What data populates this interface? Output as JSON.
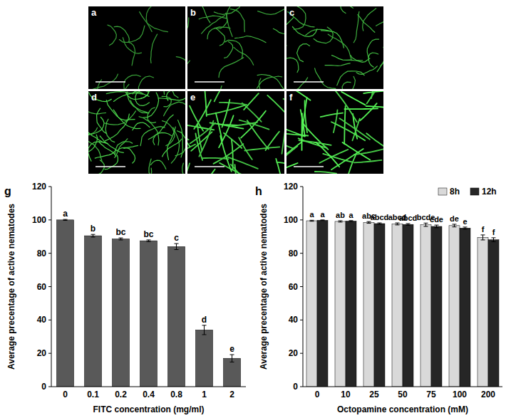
{
  "images": {
    "labels": [
      "a",
      "b",
      "c",
      "d",
      "e",
      "f"
    ]
  },
  "chart_data": [
    {
      "type": "bar",
      "title": "g",
      "x_label": "FITC concentration (mg/ml)",
      "y_label": "Average precentage of active nematodes",
      "categories": [
        "0",
        "0.1",
        "0.2",
        "0.4",
        "0.8",
        "1",
        "2"
      ],
      "values": [
        100,
        90.5,
        88.6,
        87.5,
        84,
        34,
        17
      ],
      "errors": [
        0.3,
        0.8,
        0.6,
        0.5,
        1.8,
        2.8,
        2.2
      ],
      "letters": [
        "a",
        "b",
        "bc",
        "bc",
        "c",
        "d",
        "e"
      ],
      "color": "#595959",
      "ylim": [
        0,
        120
      ],
      "yticks": [
        0,
        20,
        40,
        60,
        80,
        100,
        120
      ],
      "grid": false
    },
    {
      "type": "bar",
      "title": "h",
      "x_label": "Octopamine concentration (mM)",
      "y_label": "Average precentage of active nematodes",
      "categories": [
        "0",
        "10",
        "25",
        "50",
        "75",
        "100",
        "200"
      ],
      "series": [
        {
          "name": "8h",
          "color": "#d9d9d9",
          "values": [
            99.5,
            99.1,
            98.5,
            97.6,
            97.1,
            96.6,
            89.5
          ],
          "errors": [
            0.3,
            0.4,
            0.5,
            0.6,
            1.0,
            0.8,
            1.5
          ],
          "letters": [
            "a",
            "ab",
            "abc",
            "abcd",
            "bcde",
            "de",
            "f"
          ]
        },
        {
          "name": "12h",
          "color": "#262626",
          "values": [
            99.8,
            99.3,
            97.8,
            97.3,
            96.1,
            95.1,
            88.1
          ],
          "errors": [
            0.2,
            0.3,
            0.4,
            0.5,
            0.8,
            0.6,
            1.2
          ],
          "letters": [
            "a",
            "a",
            "abcd",
            "abcd",
            "cde",
            "e",
            "f"
          ]
        }
      ],
      "legend": "top-right",
      "ylim": [
        0,
        120
      ],
      "yticks": [
        0,
        20,
        40,
        60,
        80,
        100,
        120
      ],
      "grid": false
    }
  ]
}
